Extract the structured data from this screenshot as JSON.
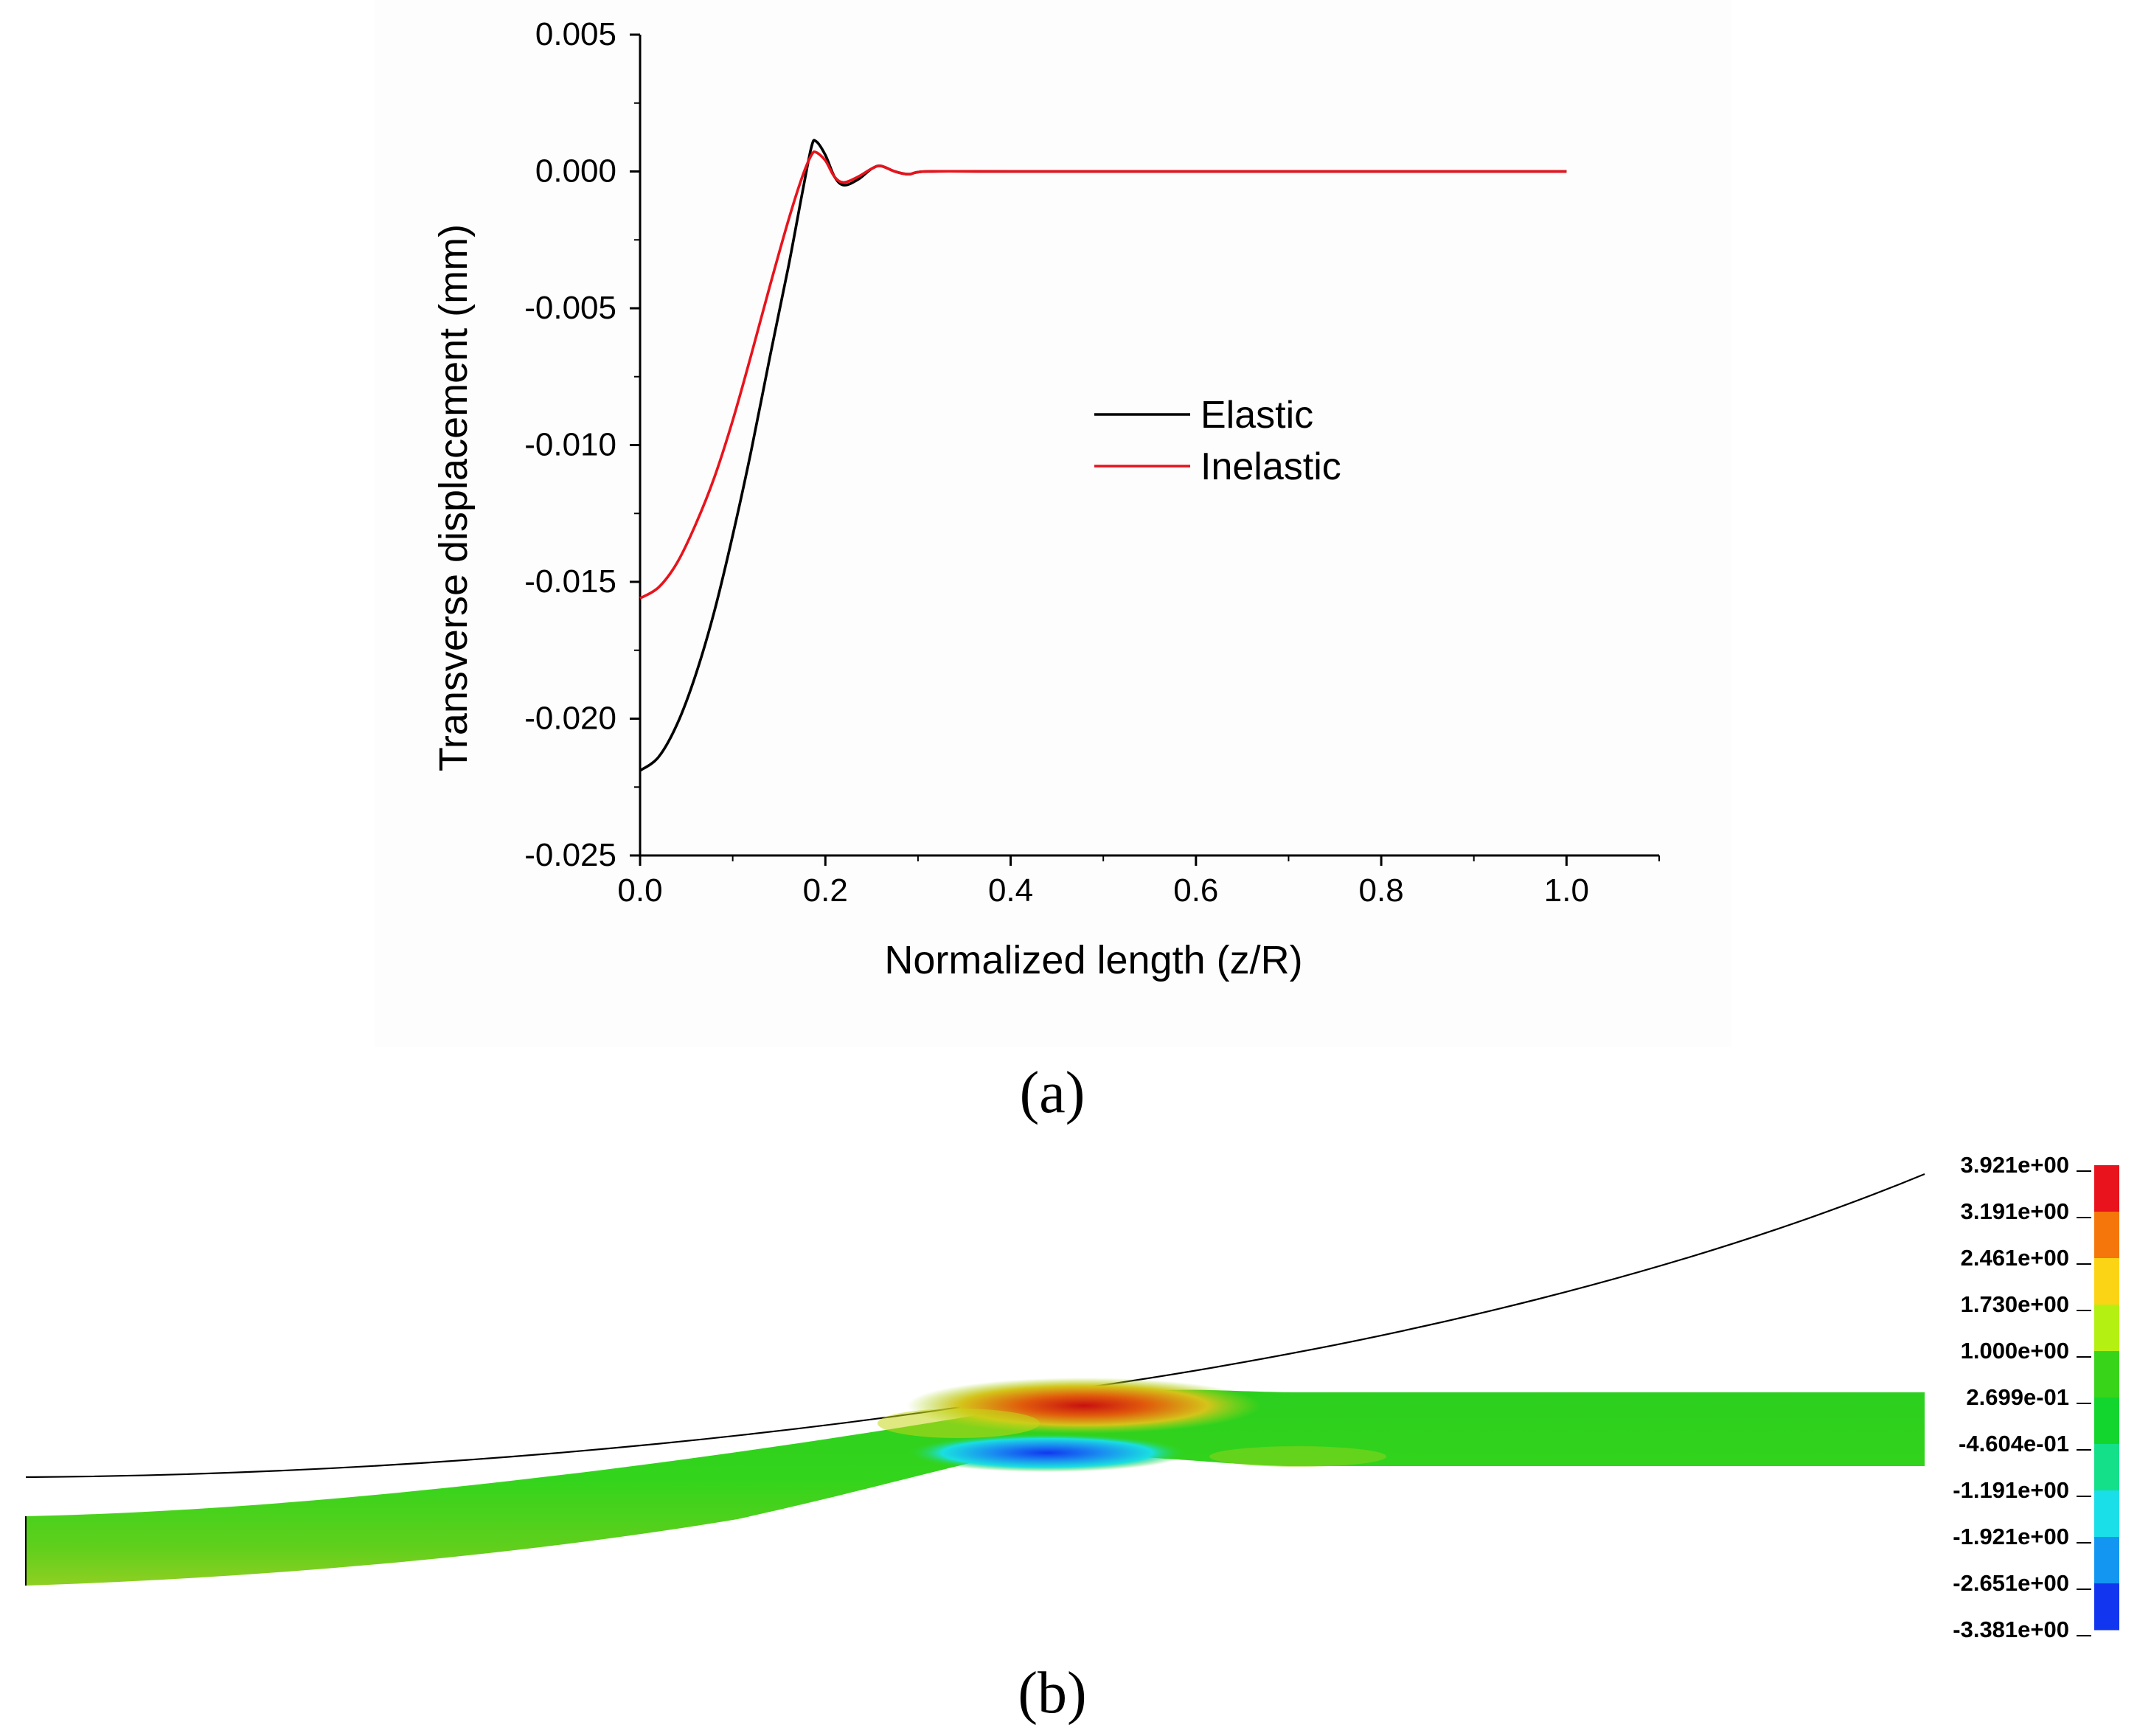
{
  "chart_data": [
    {
      "type": "line",
      "xlabel": "Normalized length (z/R)",
      "ylabel": "Transverse displacement (mm)",
      "xlim": [
        0.0,
        1.1
      ],
      "ylim": [
        -0.025,
        0.005
      ],
      "x_ticks": [
        "0.0",
        "0.2",
        "0.4",
        "0.6",
        "0.8",
        "1.0"
      ],
      "y_ticks": [
        "0.005",
        "0.000",
        "-0.005",
        "-0.010",
        "-0.015",
        "-0.020",
        "-0.025"
      ],
      "grid": false,
      "legend_position": "center-right",
      "series": [
        {
          "name": "Elastic",
          "color": "#000000",
          "points": [
            [
              0.0,
              -0.0219
            ],
            [
              0.02,
              -0.0214
            ],
            [
              0.04,
              -0.0202
            ],
            [
              0.06,
              -0.0184
            ],
            [
              0.08,
              -0.0161
            ],
            [
              0.1,
              -0.0133
            ],
            [
              0.12,
              -0.0102
            ],
            [
              0.14,
              -0.0068
            ],
            [
              0.16,
              -0.0035
            ],
            [
              0.175,
              -0.0008
            ],
            [
              0.185,
              0.0009
            ],
            [
              0.19,
              0.0011
            ],
            [
              0.2,
              0.0006
            ],
            [
              0.21,
              -0.0002
            ],
            [
              0.22,
              -0.0005
            ],
            [
              0.235,
              -0.0003
            ],
            [
              0.25,
              0.0001
            ],
            [
              0.26,
              0.0002
            ],
            [
              0.275,
              0.0
            ],
            [
              0.29,
              -0.0001
            ],
            [
              0.31,
              0.0
            ],
            [
              0.4,
              0.0
            ],
            [
              0.6,
              0.0
            ],
            [
              0.8,
              0.0
            ],
            [
              1.0,
              0.0
            ]
          ]
        },
        {
          "name": "Inelastic",
          "color": "#e8131c",
          "points": [
            [
              0.0,
              -0.0156
            ],
            [
              0.02,
              -0.0152
            ],
            [
              0.04,
              -0.0143
            ],
            [
              0.06,
              -0.0129
            ],
            [
              0.08,
              -0.0112
            ],
            [
              0.1,
              -0.0091
            ],
            [
              0.12,
              -0.0067
            ],
            [
              0.14,
              -0.0042
            ],
            [
              0.16,
              -0.0018
            ],
            [
              0.175,
              -0.0002
            ],
            [
              0.185,
              0.0006
            ],
            [
              0.19,
              0.0007
            ],
            [
              0.2,
              0.0004
            ],
            [
              0.21,
              -0.0002
            ],
            [
              0.22,
              -0.0004
            ],
            [
              0.235,
              -0.0002
            ],
            [
              0.25,
              0.0001
            ],
            [
              0.26,
              0.0002
            ],
            [
              0.275,
              0.0
            ],
            [
              0.29,
              -0.0001
            ],
            [
              0.31,
              0.0
            ],
            [
              0.4,
              0.0
            ],
            [
              0.6,
              0.0
            ],
            [
              0.8,
              0.0
            ],
            [
              1.0,
              0.0
            ]
          ]
        }
      ]
    },
    {
      "type": "heatmap",
      "colorbar_labels": [
        "3.921e+00",
        "3.191e+00",
        "2.461e+00",
        "1.730e+00",
        "1.000e+00",
        "2.699e-01",
        "-4.604e-01",
        "-1.191e+00",
        "-1.921e+00",
        "-2.651e+00",
        "-3.381e+00"
      ],
      "colorbar_colors": [
        "#e8131c",
        "#f5760a",
        "#fcd416",
        "#b4f012",
        "#38d41a",
        "#12d62e",
        "#13e089",
        "#1adfe8",
        "#1296f2",
        "#1236f0"
      ]
    }
  ],
  "captions": {
    "a": "(a)",
    "b": "(b)"
  }
}
